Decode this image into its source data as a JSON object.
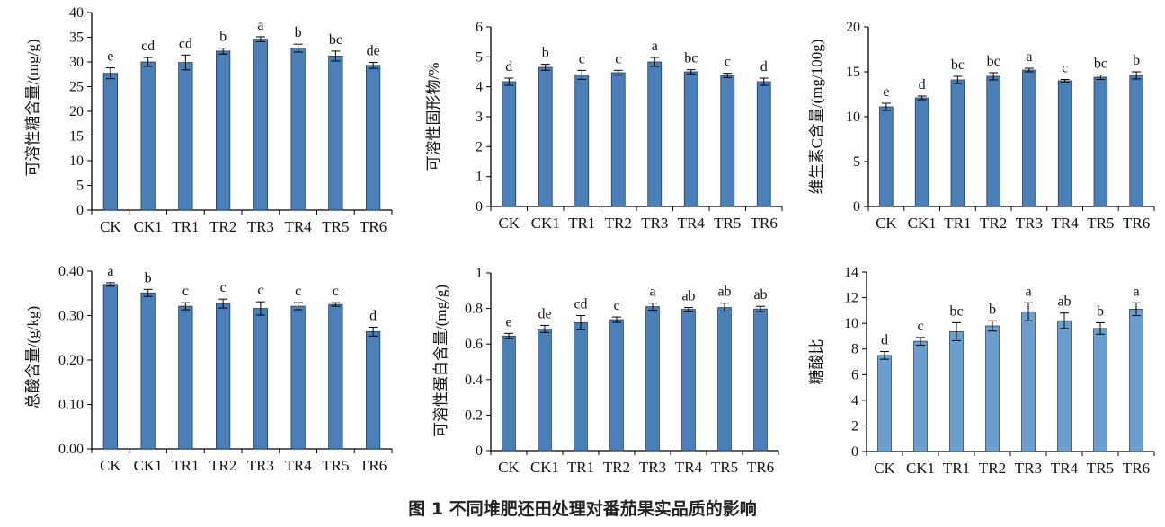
{
  "figure": {
    "caption": "图 1 不同堆肥还田处理对番茄果实品质的影响"
  },
  "colors": {
    "bar_fill_dark": "#4a7fb8",
    "bar_fill_light": "#6a9fd0",
    "bar_stroke": "#1f3d66",
    "axis": "#000000"
  },
  "chart_data": [
    {
      "type": "bar",
      "ylabel": "可溶性糖含量/(mg/g)",
      "categories": [
        "CK",
        "CK1",
        "TR1",
        "TR2",
        "TR3",
        "TR4",
        "TR5",
        "TR6"
      ],
      "values": [
        27.7,
        30.0,
        29.9,
        32.2,
        34.6,
        32.8,
        31.2,
        29.3
      ],
      "errors": [
        1.1,
        0.9,
        1.5,
        0.6,
        0.5,
        0.8,
        1.0,
        0.6
      ],
      "significance": [
        "e",
        "cd",
        "cd",
        "b",
        "a",
        "b",
        "bc",
        "de"
      ],
      "yticks": [
        "0",
        "5",
        "10",
        "15",
        "20",
        "25",
        "30",
        "35",
        "40"
      ],
      "ylim": [
        0,
        40
      ],
      "grid": false
    },
    {
      "type": "bar",
      "ylabel": "可溶性固形物/%",
      "categories": [
        "CK",
        "CK1",
        "TR1",
        "TR2",
        "TR3",
        "TR4",
        "TR5",
        "TR6"
      ],
      "values": [
        4.17,
        4.65,
        4.4,
        4.47,
        4.83,
        4.5,
        4.38,
        4.17
      ],
      "errors": [
        0.12,
        0.1,
        0.15,
        0.08,
        0.15,
        0.07,
        0.07,
        0.12
      ],
      "significance": [
        "d",
        "b",
        "c",
        "c",
        "a",
        "bc",
        "c",
        "d"
      ],
      "yticks": [
        "0",
        "1",
        "2",
        "3",
        "4",
        "5",
        "6"
      ],
      "ylim": [
        0,
        6
      ],
      "grid": false
    },
    {
      "type": "bar",
      "ylabel": "维生素C含量/(mg/100g)",
      "categories": [
        "CK",
        "CK1",
        "TR1",
        "TR2",
        "TR3",
        "TR4",
        "TR5",
        "TR6"
      ],
      "values": [
        11.1,
        12.1,
        14.1,
        14.5,
        15.2,
        14.0,
        14.4,
        14.6
      ],
      "errors": [
        0.4,
        0.2,
        0.4,
        0.4,
        0.2,
        0.15,
        0.25,
        0.4
      ],
      "significance": [
        "e",
        "d",
        "bc",
        "bc",
        "a",
        "c",
        "bc",
        "b"
      ],
      "yticks": [
        "0",
        "5",
        "10",
        "15",
        "20"
      ],
      "ylim": [
        0,
        20
      ],
      "grid": false
    },
    {
      "type": "bar",
      "ylabel": "总酸含量/(g/kg)",
      "categories": [
        "CK",
        "CK1",
        "TR1",
        "TR2",
        "TR3",
        "TR4",
        "TR5",
        "TR6"
      ],
      "values": [
        0.37,
        0.351,
        0.321,
        0.327,
        0.316,
        0.321,
        0.325,
        0.264
      ],
      "errors": [
        0.004,
        0.008,
        0.008,
        0.01,
        0.015,
        0.008,
        0.004,
        0.01
      ],
      "significance": [
        "a",
        "b",
        "c",
        "c",
        "c",
        "c",
        "c",
        "d"
      ],
      "yticks": [
        "0.00",
        "0.10",
        "0.20",
        "0.30",
        "0.40"
      ],
      "ylim": [
        0,
        0.4
      ],
      "grid": false
    },
    {
      "type": "bar",
      "ylabel": "可溶性蛋白含量/(mg/g)",
      "categories": [
        "CK",
        "CK1",
        "TR1",
        "TR2",
        "TR3",
        "TR4",
        "TR5",
        "TR6"
      ],
      "values": [
        0.645,
        0.685,
        0.72,
        0.737,
        0.81,
        0.795,
        0.805,
        0.797
      ],
      "errors": [
        0.015,
        0.02,
        0.04,
        0.015,
        0.02,
        0.01,
        0.025,
        0.015
      ],
      "significance": [
        "e",
        "de",
        "cd",
        "c",
        "a",
        "ab",
        "ab",
        "ab"
      ],
      "yticks": [
        "0",
        "0.2",
        "0.4",
        "0.6",
        "0.8",
        "1"
      ],
      "ylim": [
        0,
        1
      ],
      "grid": false
    },
    {
      "type": "bar",
      "ylabel": "糖酸比",
      "categories": [
        "CK",
        "CK1",
        "TR1",
        "TR2",
        "TR3",
        "TR4",
        "TR5",
        "TR6"
      ],
      "values": [
        7.5,
        8.6,
        9.35,
        9.8,
        10.9,
        10.2,
        9.6,
        11.1
      ],
      "errors": [
        0.3,
        0.3,
        0.7,
        0.4,
        0.7,
        0.6,
        0.45,
        0.5
      ],
      "significance": [
        "d",
        "c",
        "bc",
        "b",
        "a",
        "ab",
        "b",
        "a"
      ],
      "yticks": [
        "0",
        "2",
        "4",
        "6",
        "8",
        "10",
        "12",
        "14"
      ],
      "ylim": [
        0,
        14
      ],
      "grid": false
    }
  ]
}
